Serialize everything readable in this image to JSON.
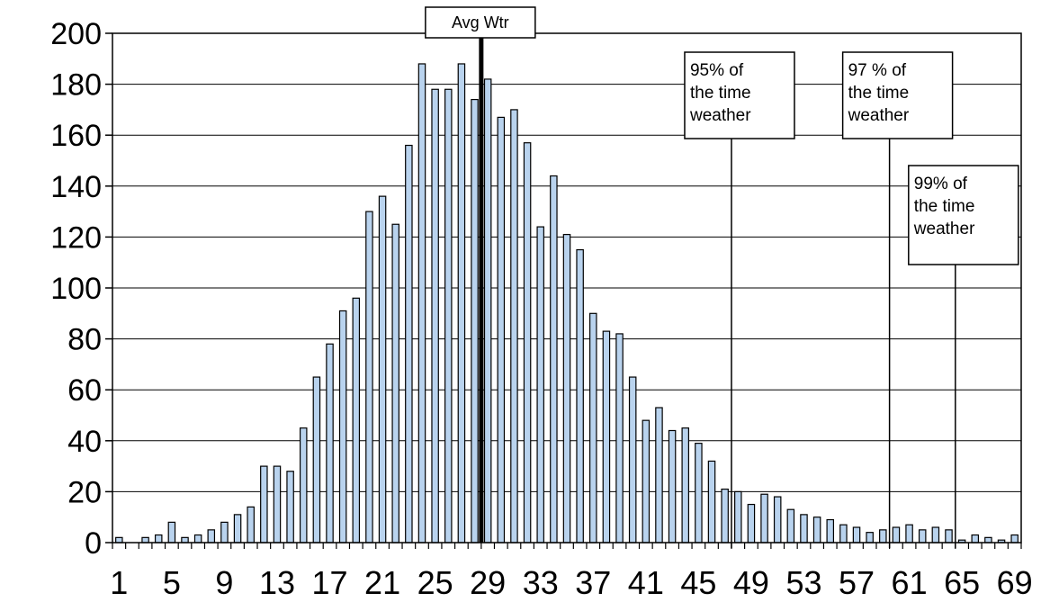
{
  "chart_data": {
    "type": "bar",
    "title": "",
    "xlabel": "",
    "ylabel": "",
    "ylim": [
      0,
      200
    ],
    "y_ticks": [
      0,
      20,
      40,
      60,
      80,
      100,
      120,
      140,
      160,
      180,
      200
    ],
    "x_tick_labels": [
      1,
      5,
      9,
      13,
      17,
      21,
      25,
      29,
      33,
      37,
      41,
      45,
      49,
      53,
      57,
      61,
      65,
      69
    ],
    "grid": "horizontal",
    "bar_color": "#b9d3ee",
    "bar_edge_color": "#000000",
    "x": [
      1,
      2,
      3,
      4,
      5,
      6,
      7,
      8,
      9,
      10,
      11,
      12,
      13,
      14,
      15,
      16,
      17,
      18,
      19,
      20,
      21,
      22,
      23,
      24,
      25,
      26,
      27,
      28,
      29,
      30,
      31,
      32,
      33,
      34,
      35,
      36,
      37,
      38,
      39,
      40,
      41,
      42,
      43,
      44,
      45,
      46,
      47,
      48,
      49,
      50,
      51,
      52,
      53,
      54,
      55,
      56,
      57,
      58,
      59,
      60,
      61,
      62,
      63,
      64,
      65,
      66,
      67,
      68,
      69
    ],
    "values": [
      2,
      0,
      2,
      3,
      8,
      2,
      3,
      5,
      8,
      11,
      14,
      30,
      30,
      28,
      45,
      65,
      78,
      91,
      96,
      130,
      136,
      125,
      156,
      188,
      178,
      178,
      188,
      174,
      182,
      167,
      170,
      157,
      124,
      144,
      121,
      115,
      90,
      83,
      82,
      65,
      48,
      53,
      44,
      45,
      39,
      32,
      21,
      20,
      15,
      19,
      18,
      13,
      11,
      10,
      9,
      7,
      6,
      4,
      5,
      6,
      7,
      5,
      6,
      5,
      1,
      3,
      2,
      1,
      3
    ],
    "annotations": [
      {
        "label": "Avg Wtr",
        "x": 28.5,
        "style": "bold-line"
      },
      {
        "lines": [
          "95% of",
          "the time",
          "weather"
        ],
        "x": 47.5
      },
      {
        "lines": [
          "97 % of",
          "the time",
          "weather"
        ],
        "x": 59.5
      },
      {
        "lines": [
          "99% of",
          "the time",
          "weather"
        ],
        "x": 64.5
      }
    ]
  }
}
